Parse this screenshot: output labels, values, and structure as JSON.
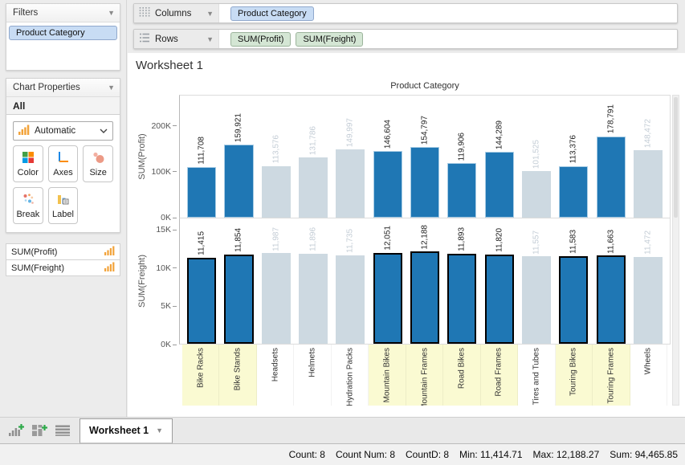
{
  "sidebar": {
    "filters": {
      "title": "Filters",
      "pill": "Product Category"
    },
    "chart_properties": {
      "title": "Chart Properties",
      "scope_label": "All",
      "type_selector": "Automatic",
      "buttons": [
        {
          "label": "Color"
        },
        {
          "label": "Axes"
        },
        {
          "label": "Size"
        },
        {
          "label": "Break"
        },
        {
          "label": "Label"
        }
      ]
    },
    "measures": [
      {
        "label": "SUM(Profit)"
      },
      {
        "label": "SUM(Freight)"
      }
    ]
  },
  "shelves": {
    "columns": {
      "label": "Columns",
      "pills": [
        {
          "label": "Product Category"
        }
      ]
    },
    "rows": {
      "label": "Rows",
      "pills": [
        {
          "label": "SUM(Profit)"
        },
        {
          "label": "SUM(Freight)"
        }
      ]
    }
  },
  "worksheet": {
    "title": "Worksheet 1"
  },
  "chart_data": {
    "type": "bar",
    "title": "Product Category",
    "grid": false,
    "legend_position": "none",
    "categories": [
      "Bike Racks",
      "Bike Stands",
      "Headsets",
      "Helmets",
      "Hydration Packs",
      "Mountain Bikes",
      "Mountain Frames",
      "Road Bikes",
      "Road Frames",
      "Tires and Tubes",
      "Touring Bikes",
      "Touring Frames",
      "Wheels"
    ],
    "highlighted": [
      true,
      true,
      false,
      false,
      false,
      true,
      true,
      true,
      true,
      false,
      true,
      true,
      false
    ],
    "series": [
      {
        "name": "SUM(Profit)",
        "values": [
          111708,
          159921,
          113576,
          131786,
          149997,
          146604,
          154797,
          119906,
          144289,
          101525,
          113376,
          178791,
          148472
        ],
        "labels": [
          "111,708",
          "159,921",
          "113,576",
          "131,786",
          "149,997",
          "146,604",
          "154,797",
          "119,906",
          "144,289",
          "101,525",
          "113,376",
          "178,791",
          "148,472"
        ],
        "axis_max": 268000,
        "ticks": [
          {
            "label": "0K",
            "value": 0
          },
          {
            "label": "100K",
            "value": 100000
          },
          {
            "label": "200K",
            "value": 200000
          }
        ],
        "selected_style": "halo"
      },
      {
        "name": "SUM(Freight)",
        "values": [
          11415,
          11854,
          11987,
          11896,
          11735,
          12051,
          12188,
          11893,
          11820,
          11557,
          11583,
          11663,
          11472
        ],
        "labels": [
          "11,415",
          "11,854",
          "11,987",
          "11,896",
          "11,735",
          "12,051",
          "12,188",
          "11,893",
          "11,820",
          "11,557",
          "11,583",
          "11,663",
          "11,472"
        ],
        "axis_max": 16600,
        "ticks": [
          {
            "label": "0K",
            "value": 0
          },
          {
            "label": "5K",
            "value": 5000
          },
          {
            "label": "10K",
            "value": 10000
          },
          {
            "label": "15K",
            "value": 15000
          }
        ],
        "selected_style": "outline"
      }
    ],
    "colors": {
      "bar_highlight": "#1f77b4",
      "bar_dim": "#cdd9e1",
      "label_highlight": "#1c1c1c",
      "label_dim": "#c3ccd5",
      "halo_border": "#a9cde5",
      "outline_border": "#000000",
      "category_highlight_bg": "#fafad2"
    }
  },
  "tab_bar": {
    "active_tab": "Worksheet 1"
  },
  "status_bar": {
    "segments": [
      "Count: 8",
      "Count Num: 8",
      "CountD: 8",
      "Min: 11,414.71",
      "Max: 12,188.27",
      "Sum: 94,465.85"
    ]
  }
}
